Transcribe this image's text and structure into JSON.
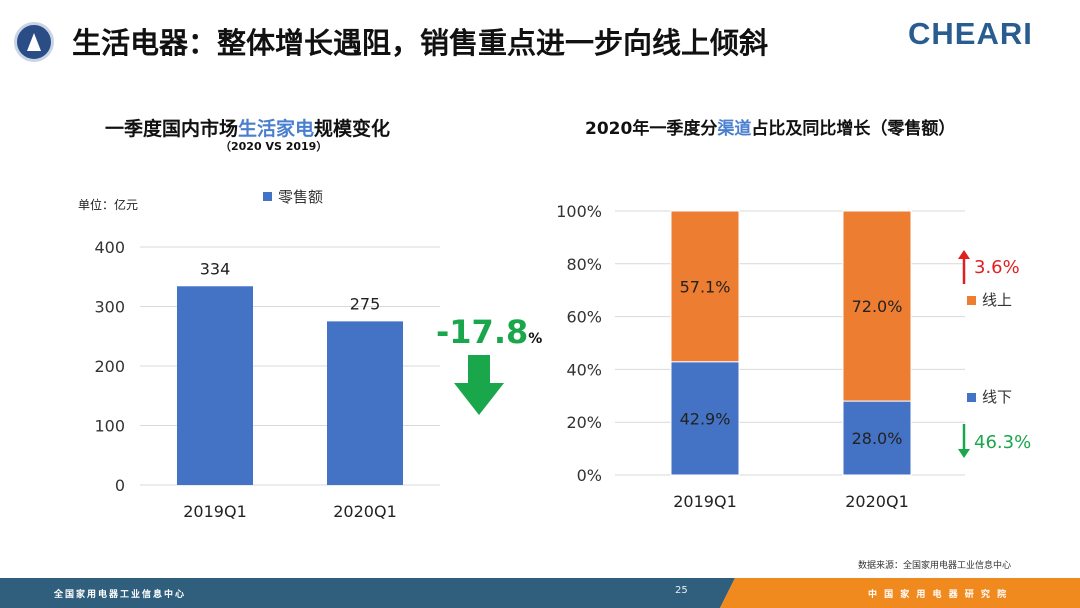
{
  "header": {
    "title": "生活电器：整体增长遇阻，销售重点进一步向线上倾斜",
    "brand": "CHEARI"
  },
  "left_chart": {
    "title_prefix": "一季度国内市场",
    "title_highlight": "生活家电",
    "title_suffix": "规模变化",
    "subtitle": "（2020 VS 2019）",
    "unit": "单位：亿元",
    "change_value": "-17.8",
    "change_unit": "%"
  },
  "right_chart": {
    "title_prefix": "2020年一季度分",
    "title_highlight": "渠道",
    "title_suffix": "占比及同比增长（零售额）",
    "online_growth": "3.6%",
    "offline_growth": "46.3%"
  },
  "colors": {
    "blue": "#4472c4",
    "orange": "#ed7d31",
    "green": "#1aa64a",
    "red": "#e02020",
    "highlight": "#4a7fd0"
  },
  "chart_data": [
    {
      "type": "bar",
      "categories": [
        "2019Q1",
        "2020Q1"
      ],
      "series": [
        {
          "name": "零售额",
          "values": [
            334,
            275
          ]
        }
      ],
      "ylim": [
        0,
        400
      ],
      "yticks": [
        0,
        100,
        200,
        300,
        400
      ],
      "data_labels": [
        "334",
        "275"
      ],
      "grid": true,
      "legend": "top"
    },
    {
      "type": "bar",
      "stacked": true,
      "categories": [
        "2019Q1",
        "2020Q1"
      ],
      "series": [
        {
          "name": "线下",
          "values": [
            42.9,
            28.0
          ],
          "labels": [
            "42.9%",
            "28.0%"
          ]
        },
        {
          "name": "线上",
          "values": [
            57.1,
            72.0
          ],
          "labels": [
            "57.1%",
            "72.0%"
          ]
        }
      ],
      "ylim": [
        0,
        100
      ],
      "yticks": [
        "0%",
        "20%",
        "40%",
        "60%",
        "80%",
        "100%"
      ],
      "grid": true,
      "legend": "right"
    }
  ],
  "footer": {
    "left_text": "全国家用电器工业信息中心",
    "page_number": "25",
    "right_text": "中 国 家 用 电 器 研 究 院",
    "source": "数据来源：全国家用电器工业信息中心"
  }
}
